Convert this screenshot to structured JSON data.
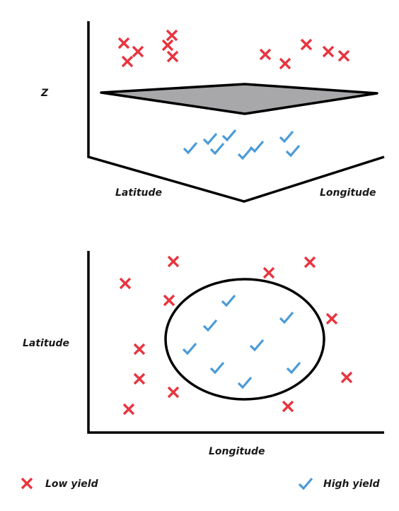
{
  "colors": {
    "low": "#e8343f",
    "high": "#4a9bd8",
    "plane": "#a8a8aa",
    "axis": "#000000"
  },
  "top_plot": {
    "labels": {
      "z": "Z",
      "latitude": "Latitude",
      "longitude": "Longitude"
    }
  },
  "bottom_plot": {
    "labels": {
      "y": "Latitude",
      "x": "Longitude"
    }
  },
  "legend": {
    "low": {
      "label": "Low yield",
      "icon": "cross-icon"
    },
    "high": {
      "label": "High yield",
      "icon": "check-icon"
    }
  }
}
